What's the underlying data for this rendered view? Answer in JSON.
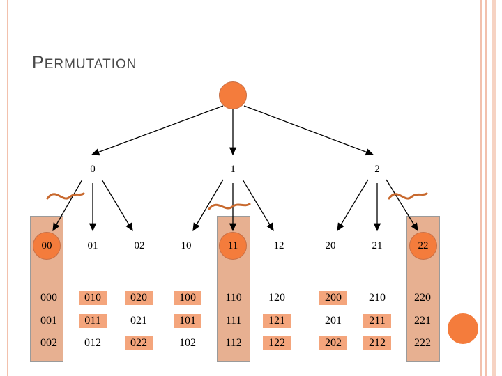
{
  "slide": {
    "title_first": "P",
    "title_rest": "ERMUTATION",
    "colors": {
      "accent": "#f47c3c",
      "column_fill": "#e7b091",
      "highlight": "#f4a57c",
      "squiggle": "#c8692e",
      "border": "#f2c1ad"
    }
  },
  "tree": {
    "root": "",
    "level1": [
      "0",
      "1",
      "2"
    ],
    "level2": [
      "00",
      "01",
      "02",
      "10",
      "11",
      "12",
      "20",
      "21",
      "22"
    ],
    "highlighted_level2": [
      "00",
      "11",
      "22"
    ]
  },
  "leaves": {
    "rows": [
      [
        "000",
        "010",
        "020",
        "100",
        "110",
        "120",
        "200",
        "210",
        "220"
      ],
      [
        "001",
        "011",
        "021",
        "101",
        "111",
        "121",
        "201",
        "211",
        "221"
      ],
      [
        "002",
        "012",
        "022",
        "102",
        "112",
        "122",
        "202",
        "212",
        "222"
      ]
    ],
    "highlighted": [
      "000",
      "010",
      "020",
      "100",
      "110",
      "200",
      "001",
      "011",
      "101",
      "111",
      "121",
      "211",
      "002",
      "022",
      "112",
      "122",
      "202",
      "212"
    ]
  }
}
